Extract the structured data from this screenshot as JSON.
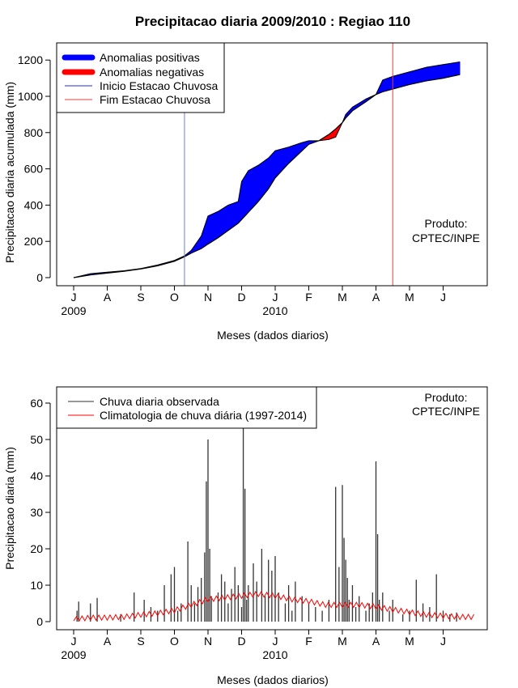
{
  "title": "Precipitacao diaria 2009/2010 : Regiao 110",
  "product_label": "Produto:",
  "product_org": "CPTEC/INPE",
  "colors": {
    "positive": "#0000ff",
    "negative": "#ff0000",
    "onset": "#6b7fd6",
    "end": "#e04040",
    "observed": "#333333",
    "climatology": "#ff0000"
  },
  "chart_data": [
    {
      "type": "area",
      "ylabel": "Precipitacao diaria acumulada (mm)",
      "xlabel": "Meses (dados diarios)",
      "x_ticks": [
        "J",
        "A",
        "S",
        "O",
        "N",
        "D",
        "J",
        "F",
        "M",
        "A",
        "M",
        "J"
      ],
      "year_labels": [
        {
          "label": "2009",
          "month_index": 0
        },
        {
          "label": "2010",
          "month_index": 6
        }
      ],
      "ylim": [
        0,
        1250
      ],
      "y_ticks": [
        0,
        200,
        400,
        600,
        800,
        1000,
        1200
      ],
      "legend": [
        {
          "label": "Anomalias positivas",
          "style": "thick",
          "color_key": "positive"
        },
        {
          "label": "Anomalias negativas",
          "style": "thick",
          "color_key": "negative"
        },
        {
          "label": "Inicio Estacao Chuvosa",
          "style": "thin",
          "color_key": "onset"
        },
        {
          "label": "Fim Estacao Chuvosa",
          "style": "thin",
          "color_key": "end"
        }
      ],
      "onset_month": 3.3,
      "end_month": 9.5,
      "series": [
        {
          "name": "observed_accumulated",
          "x": [
            0,
            0.5,
            1,
            1.5,
            2,
            2.5,
            3,
            3.3,
            3.5,
            3.8,
            4,
            4.3,
            4.6,
            4.9,
            5.0,
            5.2,
            5.5,
            5.8,
            6.0,
            6.4,
            6.8,
            7.0,
            7.3,
            7.6,
            7.8,
            8.0,
            8.1,
            8.3,
            8.7,
            9.0,
            9.2,
            9.5,
            10.0,
            10.5,
            11.0,
            11.5
          ],
          "values": [
            0,
            22,
            30,
            38,
            50,
            70,
            95,
            120,
            150,
            230,
            340,
            365,
            400,
            420,
            530,
            590,
            620,
            660,
            700,
            720,
            745,
            755,
            755,
            762,
            775,
            855,
            900,
            940,
            985,
            1010,
            1090,
            1110,
            1135,
            1160,
            1175,
            1190
          ]
        },
        {
          "name": "climatology_accumulated",
          "x": [
            0,
            0.5,
            1,
            1.5,
            2,
            2.5,
            3,
            3.3,
            3.5,
            3.8,
            4,
            4.3,
            4.6,
            4.9,
            5.0,
            5.2,
            5.5,
            5.8,
            6.0,
            6.4,
            6.8,
            7.0,
            7.3,
            7.6,
            7.8,
            8.0,
            8.1,
            8.3,
            8.7,
            9.0,
            9.2,
            9.5,
            10.0,
            10.5,
            11.0,
            11.5
          ],
          "values": [
            0,
            15,
            25,
            35,
            48,
            65,
            90,
            115,
            135,
            160,
            185,
            220,
            260,
            300,
            320,
            360,
            420,
            490,
            550,
            630,
            700,
            735,
            755,
            790,
            820,
            855,
            880,
            920,
            970,
            1010,
            1025,
            1040,
            1065,
            1085,
            1100,
            1120
          ]
        }
      ]
    },
    {
      "type": "bar",
      "ylabel": "Precipitacao diaria (mm)",
      "xlabel": "Meses (dados diarios)",
      "x_ticks": [
        "J",
        "A",
        "S",
        "O",
        "N",
        "D",
        "J",
        "F",
        "M",
        "A",
        "M",
        "J"
      ],
      "year_labels": [
        {
          "label": "2009",
          "month_index": 0
        },
        {
          "label": "2010",
          "month_index": 6
        }
      ],
      "ylim": [
        0,
        65
      ],
      "y_ticks": [
        0,
        10,
        20,
        30,
        40,
        50,
        60
      ],
      "legend": [
        {
          "label": "Chuva diaria observada",
          "style": "thin",
          "color_key": "observed"
        },
        {
          "label": "Climatologia de chuva diária (1997-2014)",
          "style": "thin",
          "color_key": "climatology"
        }
      ],
      "series": [
        {
          "name": "observed_daily",
          "x": [
            0.1,
            0.15,
            0.5,
            0.7,
            1.4,
            1.8,
            2.1,
            2.3,
            2.5,
            2.7,
            2.9,
            3.0,
            3.1,
            3.2,
            3.4,
            3.5,
            3.6,
            3.7,
            3.8,
            3.9,
            3.95,
            4.0,
            4.05,
            4.1,
            4.3,
            4.4,
            4.5,
            4.6,
            4.7,
            4.8,
            4.9,
            5.0,
            5.05,
            5.1,
            5.15,
            5.2,
            5.35,
            5.45,
            5.6,
            5.7,
            5.8,
            5.9,
            6.0,
            6.1,
            6.3,
            6.4,
            6.5,
            6.6,
            6.8,
            7.0,
            7.2,
            7.4,
            7.6,
            7.8,
            7.9,
            8.0,
            8.05,
            8.1,
            8.15,
            8.2,
            8.3,
            8.4,
            8.5,
            8.7,
            8.8,
            8.9,
            9.0,
            9.05,
            9.1,
            9.2,
            9.4,
            9.5,
            9.8,
            10.0,
            10.2,
            10.4,
            10.6,
            10.8,
            11.0,
            11.2,
            11.4
          ],
          "values": [
            3,
            5.5,
            5,
            6.5,
            2,
            8,
            6,
            4,
            3,
            10,
            13,
            15,
            3,
            5,
            22,
            10,
            5,
            9.5,
            12,
            19,
            38.5,
            50,
            20,
            7,
            8,
            13,
            11,
            5,
            9,
            15,
            10,
            4,
            53,
            36.5,
            6,
            10,
            16,
            11,
            20,
            7,
            17,
            14,
            18,
            8,
            5,
            10,
            3,
            11,
            7,
            5,
            4,
            3,
            6,
            37,
            15,
            37.5,
            23,
            17,
            12,
            6,
            10,
            4,
            7,
            3,
            5,
            8,
            44,
            24,
            6,
            8,
            3,
            6,
            2,
            3,
            11.5,
            5,
            4,
            13,
            3,
            2,
            2.5
          ]
        },
        {
          "name": "climatology_daily",
          "x": [
            0,
            0.5,
            1,
            1.5,
            2,
            2.5,
            3,
            3.5,
            4,
            4.5,
            5,
            5.5,
            6,
            6.5,
            7,
            7.5,
            8,
            8.5,
            9,
            9.5,
            10,
            10.5,
            11,
            11.5
          ],
          "values": [
            0.5,
            1,
            1,
            1.2,
            1.8,
            2.2,
            3,
            4.5,
            6,
            6.5,
            7,
            7.5,
            7,
            6,
            5.5,
            4.5,
            4.5,
            4.5,
            4,
            3.2,
            2.5,
            1.8,
            1.5,
            1.2
          ]
        }
      ]
    }
  ]
}
